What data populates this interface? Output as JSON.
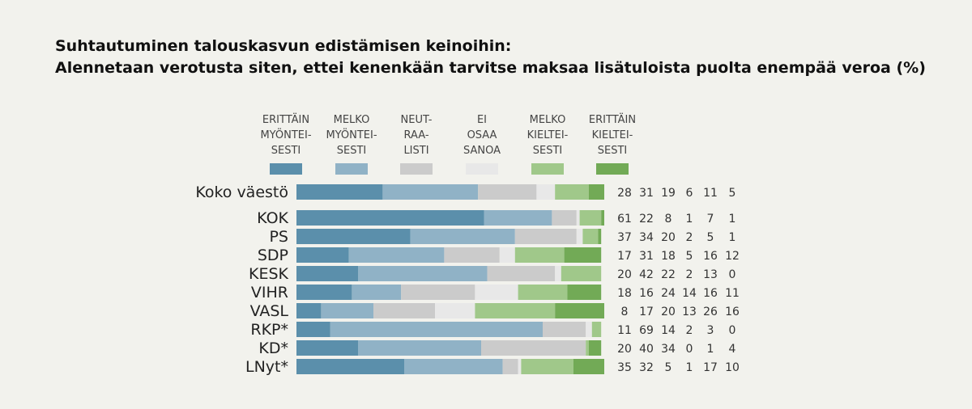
{
  "title_line1": "Suhtautuminen talouskasvun edistämisen keinoihin:",
  "title_line2": "Alennetaan verotusta siten, ettei kenenkään tarvitse maksaa lisätuloista puolta enempää veroa (%)",
  "chart_data": {
    "type": "bar",
    "orientation": "horizontal",
    "stacked": true,
    "xlim": [
      0,
      100
    ],
    "legend_position": "top",
    "categories": [
      "Koko väestö",
      "KOK",
      "PS",
      "SDP",
      "KESK",
      "VIHR",
      "VASL",
      "RKP*",
      "KD*",
      "LNyt*"
    ],
    "series": [
      {
        "name": "ERITTÄIN MYÖNTEI- SESTI",
        "legend_lines": [
          "ERITTÄIN",
          "MYÖNTEI-",
          "SESTI"
        ],
        "color": "#5b8fab",
        "values": [
          28,
          61,
          37,
          17,
          20,
          18,
          8,
          11,
          20,
          35
        ]
      },
      {
        "name": "MELKO MYÖNTEI- SESTI",
        "legend_lines": [
          "MELKO",
          "MYÖNTEI-",
          "SESTI"
        ],
        "color": "#90b2c6",
        "values": [
          31,
          22,
          34,
          31,
          42,
          16,
          17,
          69,
          40,
          32
        ]
      },
      {
        "name": "NEUT- RAA- LISTI",
        "legend_lines": [
          "NEUT-",
          "RAA-",
          "LISTI"
        ],
        "color": "#cbcbcb",
        "values": [
          19,
          8,
          20,
          18,
          22,
          24,
          20,
          14,
          34,
          5
        ]
      },
      {
        "name": "EI OSAA SANOA",
        "legend_lines": [
          "EI",
          "OSAA",
          "SANOA"
        ],
        "color": "#e8e8e8",
        "values": [
          6,
          1,
          2,
          5,
          2,
          14,
          13,
          2,
          0,
          1
        ]
      },
      {
        "name": "MELKO KIELTEI- SESTI",
        "legend_lines": [
          "MELKO",
          "KIELTEI-",
          "SESTI"
        ],
        "color": "#a0c88a",
        "values": [
          11,
          7,
          5,
          16,
          13,
          16,
          26,
          3,
          1,
          17
        ]
      },
      {
        "name": "ERITTÄIN KIELTEI- SESTI",
        "legend_lines": [
          "ERITTÄIN",
          "KIELTEI-",
          "SESTI"
        ],
        "color": "#72aa56",
        "values": [
          5,
          1,
          1,
          12,
          0,
          11,
          16,
          0,
          4,
          10
        ]
      }
    ]
  }
}
